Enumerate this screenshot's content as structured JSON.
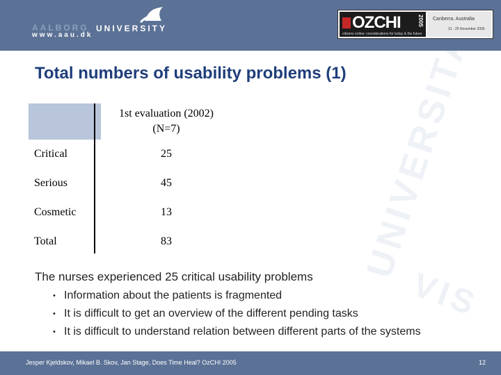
{
  "header": {
    "logo_dim_text": "AALBORG",
    "logo_word": "UNIVERSITY",
    "logo_web": "www.aau.dk",
    "conference": {
      "name": "OZCHI",
      "year": "2005",
      "tagline": "citizens online: considerations for today & the future",
      "place": "Canberra, Australia",
      "dates": "21 - 25 November 2005"
    },
    "accent_color": "#5b7196"
  },
  "slide": {
    "title": "Total numbers of usability problems (1)",
    "title_color": "#1f3e7a",
    "table": {
      "column_header_line1": "1st evaluation (2002)",
      "column_header_line2": "(N=7)",
      "rows": [
        {
          "label": "Critical",
          "value": "25"
        },
        {
          "label": "Serious",
          "value": "45"
        },
        {
          "label": "Cosmetic",
          "value": "13"
        },
        {
          "label": "Total",
          "value": "83"
        }
      ]
    },
    "summary": "The nurses experienced 25 critical usability problems",
    "bullets": [
      "Information about the patients is fragmented",
      "It is difficult to get an overview of the different pending tasks",
      "It is difficult to understand relation between different parts of the systems"
    ],
    "bullet_glyph": "•",
    "watermark_text": "UNIVERSITAS",
    "watermark_text2": "VIS"
  },
  "footer": {
    "text": "Jesper Kjeldskov, Mikael B. Skov, Jan Stage, Does Time Heal? OzCHI 2005",
    "page_number": "12"
  }
}
